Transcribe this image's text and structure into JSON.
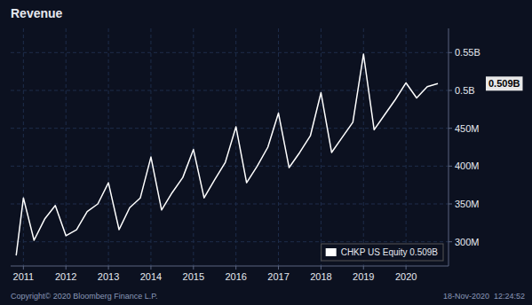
{
  "chart_data": {
    "type": "line",
    "title": "Revenue",
    "x": [
      2010.83,
      2011.0,
      2011.25,
      2011.5,
      2011.75,
      2012.0,
      2012.25,
      2012.5,
      2012.75,
      2013.0,
      2013.25,
      2013.5,
      2013.75,
      2014.0,
      2014.25,
      2014.5,
      2014.75,
      2015.0,
      2015.25,
      2015.5,
      2015.75,
      2016.0,
      2016.25,
      2016.5,
      2016.75,
      2017.0,
      2017.25,
      2017.5,
      2017.75,
      2018.0,
      2018.25,
      2018.5,
      2018.75,
      2019.0,
      2019.25,
      2019.5,
      2019.75,
      2020.0,
      2020.25,
      2020.5,
      2020.75
    ],
    "series": [
      {
        "name": "CHKP US Equity  0.509B",
        "color": "#ffffff",
        "values": [
          282000000,
          358000000,
          302000000,
          330000000,
          348000000,
          308000000,
          316000000,
          340000000,
          350000000,
          378000000,
          316000000,
          345000000,
          358000000,
          412000000,
          342000000,
          365000000,
          385000000,
          422000000,
          358000000,
          382000000,
          405000000,
          452000000,
          378000000,
          400000000,
          425000000,
          470000000,
          398000000,
          418000000,
          440000000,
          497000000,
          418000000,
          438000000,
          458000000,
          548000000,
          448000000,
          468000000,
          488000000,
          510000000,
          490000000,
          505000000,
          509000000
        ]
      }
    ],
    "xlim": [
      2010.7,
      2021.0
    ],
    "xticks": [
      2011,
      2012,
      2013,
      2014,
      2015,
      2016,
      2017,
      2018,
      2019,
      2020
    ],
    "ylim": [
      268000000,
      582000000
    ],
    "yticks": [
      {
        "value": 300000000,
        "label": "300M"
      },
      {
        "value": 350000000,
        "label": "350M"
      },
      {
        "value": 400000000,
        "label": "400M"
      },
      {
        "value": 450000000,
        "label": "450M"
      },
      {
        "value": 500000000,
        "label": "0.5B"
      },
      {
        "value": 550000000,
        "label": "0.55B"
      }
    ],
    "grid": true,
    "legend": "lower right",
    "annotations": [
      {
        "text": "0.509B",
        "y": 509000000
      }
    ],
    "footer": [
      "Copyright© 2020 Bloomberg Finance L.P.",
      "18-Nov-2020  12:24:52"
    ]
  }
}
